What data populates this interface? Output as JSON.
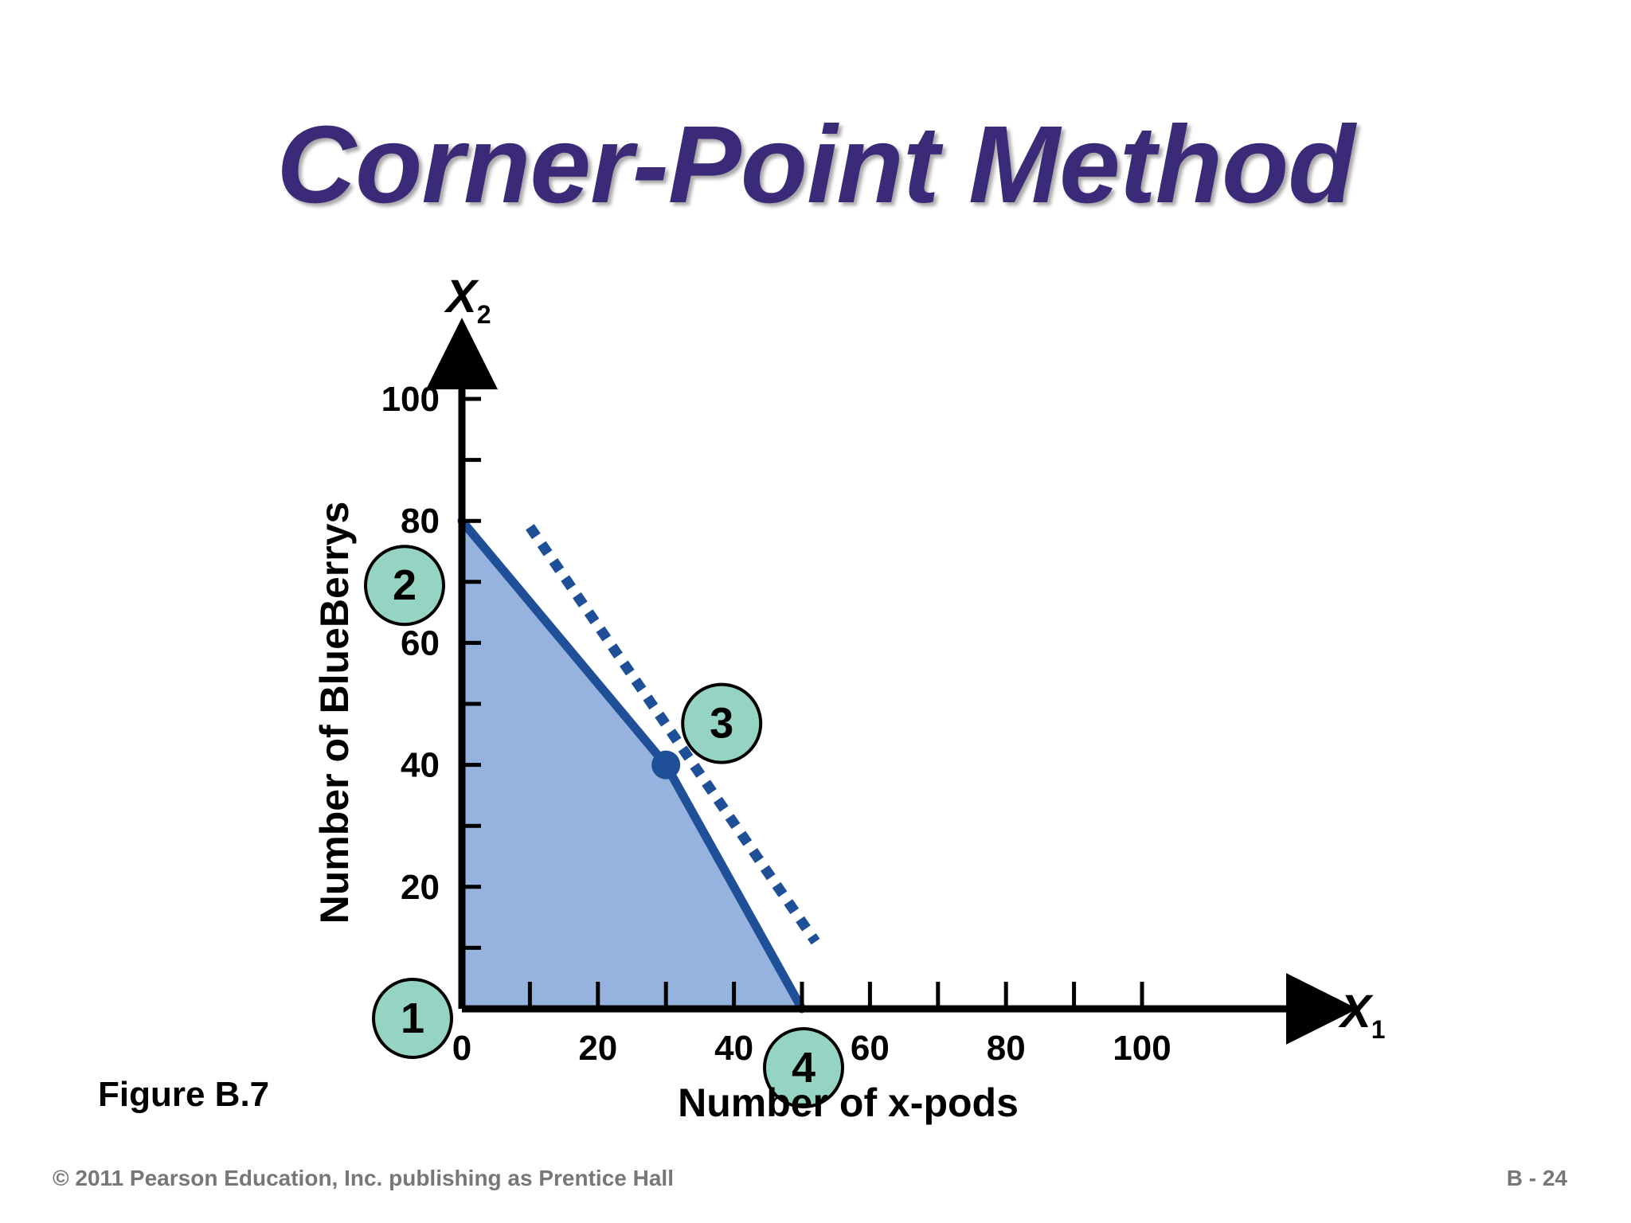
{
  "title": "Corner-Point Method",
  "figure_label": "Figure B.7",
  "footer": {
    "copyright": "© 2011 Pearson Education, Inc. publishing as Prentice Hall",
    "page": "B - 24"
  },
  "colors": {
    "title": "#3a2a78",
    "feasible_region": "#95b3de",
    "constraint_line": "#1e4f97",
    "corner_marker_fill": "#95d4c3",
    "axis": "#000000"
  },
  "chart_data": {
    "type": "area",
    "xlabel": "Number of x-pods",
    "ylabel": "Number of BlueBerrys",
    "x_axis_symbol": "X",
    "x_axis_subscript": "1",
    "y_axis_symbol": "X",
    "y_axis_subscript": "2",
    "xlim": [
      0,
      120
    ],
    "ylim": [
      0,
      100
    ],
    "x_ticks": [
      0,
      20,
      40,
      60,
      80,
      100
    ],
    "x_tick_labels": [
      "0",
      "20",
      "40",
      "60",
      "80",
      "100"
    ],
    "y_ticks": [
      20,
      40,
      60,
      80,
      100
    ],
    "y_tick_labels": [
      "20",
      "40",
      "60",
      "80",
      "100"
    ],
    "x_minor_step": 10,
    "y_minor_step": 10,
    "feasible_region": [
      [
        0,
        0
      ],
      [
        0,
        80
      ],
      [
        30,
        40
      ],
      [
        50,
        0
      ]
    ],
    "constraint_lines": [
      {
        "x": [
          0,
          30
        ],
        "y": [
          80,
          40
        ]
      },
      {
        "x": [
          30,
          50
        ],
        "y": [
          40,
          0
        ]
      }
    ],
    "iso_profit_line": {
      "x": [
        10,
        52
      ],
      "y": [
        79,
        11
      ]
    },
    "optimal_point": {
      "x": 30,
      "y": 40
    },
    "corner_points": [
      {
        "label": "1",
        "x": 0,
        "y": 0
      },
      {
        "label": "2",
        "x": 0,
        "y": 80
      },
      {
        "label": "3",
        "x": 30,
        "y": 40
      },
      {
        "label": "4",
        "x": 50,
        "y": 0
      }
    ]
  }
}
